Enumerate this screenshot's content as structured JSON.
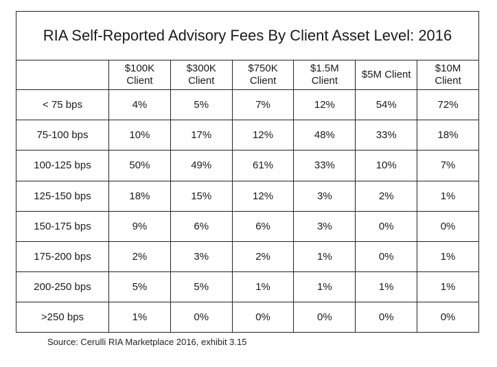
{
  "chart_data": {
    "type": "table",
    "title": "RIA Self-Reported Advisory Fees By Client Asset Level: 2016",
    "columns": [
      "$100K Client",
      "$300K Client",
      "$750K Client",
      "$1.5M Client",
      "$5M Client",
      "$10M Client"
    ],
    "columns_display": [
      [
        "$100K",
        "Client"
      ],
      [
        "$300K",
        "Client"
      ],
      [
        "$750K",
        "Client"
      ],
      [
        "$1.5M",
        "Client"
      ],
      [
        "$5M Client"
      ],
      [
        "$10M",
        "Client"
      ]
    ],
    "rows": [
      {
        "label": "< 75 bps",
        "values": [
          "4%",
          "5%",
          "7%",
          "12%",
          "54%",
          "72%"
        ]
      },
      {
        "label": "75-100 bps",
        "values": [
          "10%",
          "17%",
          "12%",
          "48%",
          "33%",
          "18%"
        ]
      },
      {
        "label": "100-125 bps",
        "values": [
          "50%",
          "49%",
          "61%",
          "33%",
          "10%",
          "7%"
        ]
      },
      {
        "label": "125-150 bps",
        "values": [
          "18%",
          "15%",
          "12%",
          "3%",
          "2%",
          "1%"
        ]
      },
      {
        "label": "150-175 bps",
        "values": [
          "9%",
          "6%",
          "6%",
          "3%",
          "0%",
          "0%"
        ]
      },
      {
        "label": "175-200 bps",
        "values": [
          "2%",
          "3%",
          "2%",
          "1%",
          "0%",
          "1%"
        ]
      },
      {
        "label": "200-250 bps",
        "values": [
          "5%",
          "5%",
          "1%",
          "1%",
          "1%",
          "1%"
        ]
      },
      {
        "label": ">250 bps",
        "values": [
          "1%",
          "0%",
          "0%",
          "0%",
          "0%",
          "0%"
        ]
      }
    ],
    "source": "Source: Cerulli RIA Marketplace 2016, exhibit 3.15"
  }
}
